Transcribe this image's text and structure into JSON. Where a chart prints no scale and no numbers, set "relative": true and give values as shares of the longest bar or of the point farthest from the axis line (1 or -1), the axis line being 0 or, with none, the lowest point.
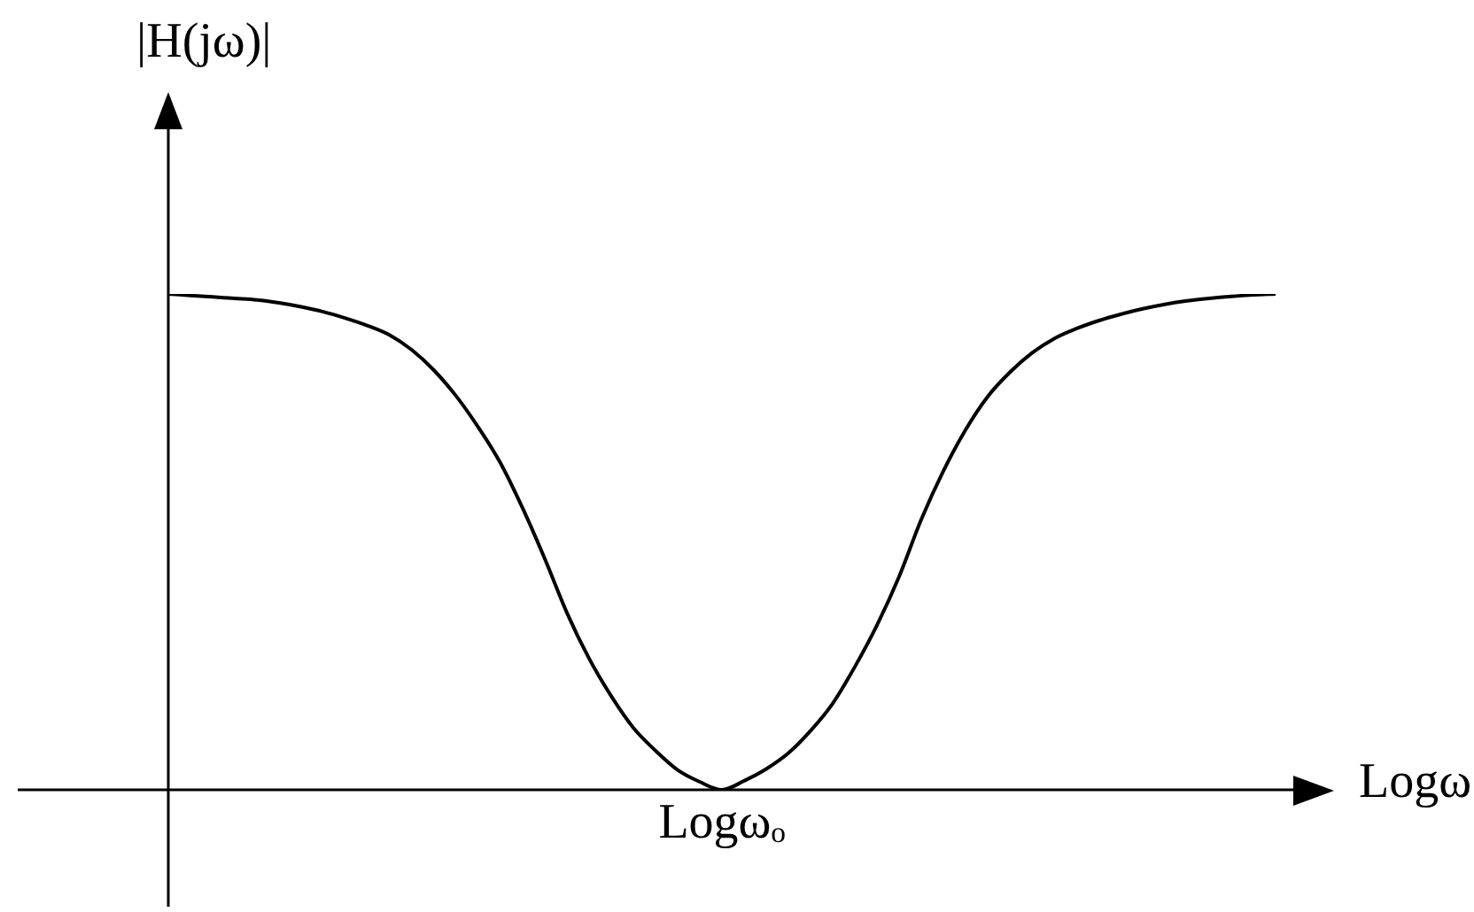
{
  "chart_data": {
    "type": "line",
    "xlabel": "Logω",
    "ylabel": "|H(jω)|",
    "relative": true,
    "categories": [
      null,
      null,
      null,
      null,
      null,
      null,
      null,
      null,
      null,
      null,
      null,
      null,
      null,
      null,
      null,
      null,
      null,
      null,
      null,
      null,
      null,
      null,
      null,
      null,
      null,
      null,
      null,
      null,
      null,
      null,
      null,
      null,
      null,
      null,
      null,
      null,
      null,
      null,
      null,
      null,
      null,
      null,
      null,
      null,
      null,
      null,
      null,
      null,
      null,
      null,
      null
    ],
    "values": [
      1,
      0.997,
      0.994,
      0.991,
      0.988,
      0.982,
      0.974,
      0.964,
      0.951,
      0.936,
      0.917,
      0.887,
      0.846,
      0.794,
      0.731,
      0.659,
      0.568,
      0.466,
      0.357,
      0.265,
      0.189,
      0.125,
      0.079,
      0.04,
      0.016,
      0,
      0.018,
      0.042,
      0.074,
      0.119,
      0.174,
      0.248,
      0.332,
      0.43,
      0.545,
      0.643,
      0.726,
      0.793,
      0.842,
      0.881,
      0.91,
      0.93,
      0.946,
      0.959,
      0.97,
      0.979,
      0.986,
      0.991,
      0.995,
      0.998,
      1
    ],
    "color": "#000000",
    "marker": "none",
    "legend": false,
    "annotations": [
      {
        "text": "Logωₒ",
        "y": 0
      }
    ]
  }
}
